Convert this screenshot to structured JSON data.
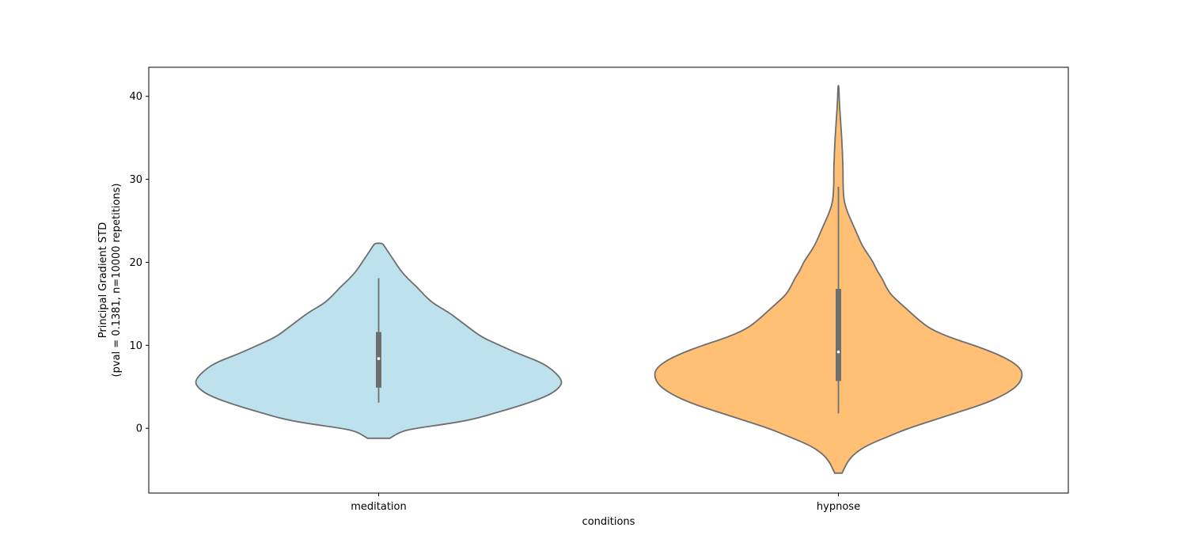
{
  "chart_data": {
    "type": "violin",
    "xlabel": "conditions",
    "ylabel_lines": [
      "Principal Gradient STD",
      "(pval = 0.1381, n=10000 repetitions)"
    ],
    "ylim": [
      -7.8,
      43.5
    ],
    "yticks": [
      0,
      10,
      20,
      30,
      40
    ],
    "categories": [
      "meditation",
      "hypnose"
    ],
    "series": [
      {
        "category": "meditation",
        "color": "#bde2ee",
        "edge_color": "#6e6e6e",
        "min": 3.1,
        "q1": 4.9,
        "median": 8.4,
        "q3": 11.6,
        "max": 18.1,
        "violin_range": [
          -1.2,
          22.3
        ],
        "density_profile": [
          [
            -1.2,
            0.06
          ],
          [
            -0.4,
            0.12
          ],
          [
            0.0,
            0.2
          ],
          [
            0.5,
            0.36
          ],
          [
            1.0,
            0.5
          ],
          [
            2.0,
            0.66
          ],
          [
            3.0,
            0.81
          ],
          [
            4.0,
            0.93
          ],
          [
            5.0,
            0.99
          ],
          [
            5.8,
            1.0
          ],
          [
            7.0,
            0.95
          ],
          [
            8.0,
            0.88
          ],
          [
            9.0,
            0.76
          ],
          [
            10.0,
            0.66
          ],
          [
            11.0,
            0.56
          ],
          [
            12.0,
            0.5
          ],
          [
            13.0,
            0.44
          ],
          [
            14.0,
            0.38
          ],
          [
            15.0,
            0.3
          ],
          [
            16.0,
            0.25
          ],
          [
            17.0,
            0.21
          ],
          [
            18.0,
            0.16
          ],
          [
            19.0,
            0.12
          ],
          [
            20.0,
            0.09
          ],
          [
            21.0,
            0.06
          ],
          [
            22.0,
            0.03
          ],
          [
            22.3,
            0.02
          ]
        ]
      },
      {
        "category": "hypnose",
        "color": "#ffc076",
        "edge_color": "#6e6e6e",
        "min": 1.8,
        "q1": 5.7,
        "median": 9.2,
        "q3": 16.8,
        "max": 29.1,
        "violin_range": [
          -5.4,
          41.3
        ],
        "density_profile": [
          [
            -5.4,
            0.02
          ],
          [
            -4.0,
            0.05
          ],
          [
            -3.0,
            0.09
          ],
          [
            -2.0,
            0.16
          ],
          [
            -1.0,
            0.27
          ],
          [
            0.0,
            0.38
          ],
          [
            1.0,
            0.52
          ],
          [
            2.0,
            0.66
          ],
          [
            3.0,
            0.8
          ],
          [
            4.0,
            0.9
          ],
          [
            5.0,
            0.97
          ],
          [
            6.0,
            1.0
          ],
          [
            7.0,
            1.0
          ],
          [
            8.0,
            0.95
          ],
          [
            9.0,
            0.86
          ],
          [
            10.0,
            0.74
          ],
          [
            11.0,
            0.6
          ],
          [
            12.0,
            0.5
          ],
          [
            13.0,
            0.44
          ],
          [
            14.0,
            0.39
          ],
          [
            15.0,
            0.34
          ],
          [
            16.0,
            0.29
          ],
          [
            17.0,
            0.26
          ],
          [
            18.0,
            0.24
          ],
          [
            19.0,
            0.21
          ],
          [
            20.0,
            0.19
          ],
          [
            21.0,
            0.16
          ],
          [
            22.0,
            0.13
          ],
          [
            23.0,
            0.11
          ],
          [
            24.0,
            0.09
          ],
          [
            25.0,
            0.07
          ],
          [
            26.0,
            0.05
          ],
          [
            27.0,
            0.035
          ],
          [
            28.0,
            0.028
          ],
          [
            29.0,
            0.026
          ],
          [
            30.0,
            0.025
          ],
          [
            31.0,
            0.025
          ],
          [
            32.0,
            0.024
          ],
          [
            33.0,
            0.022
          ],
          [
            34.0,
            0.02
          ],
          [
            35.0,
            0.018
          ],
          [
            36.0,
            0.015
          ],
          [
            37.0,
            0.012
          ],
          [
            38.0,
            0.009
          ],
          [
            39.0,
            0.006
          ],
          [
            40.0,
            0.004
          ],
          [
            41.3,
            0.002
          ]
        ]
      }
    ]
  }
}
